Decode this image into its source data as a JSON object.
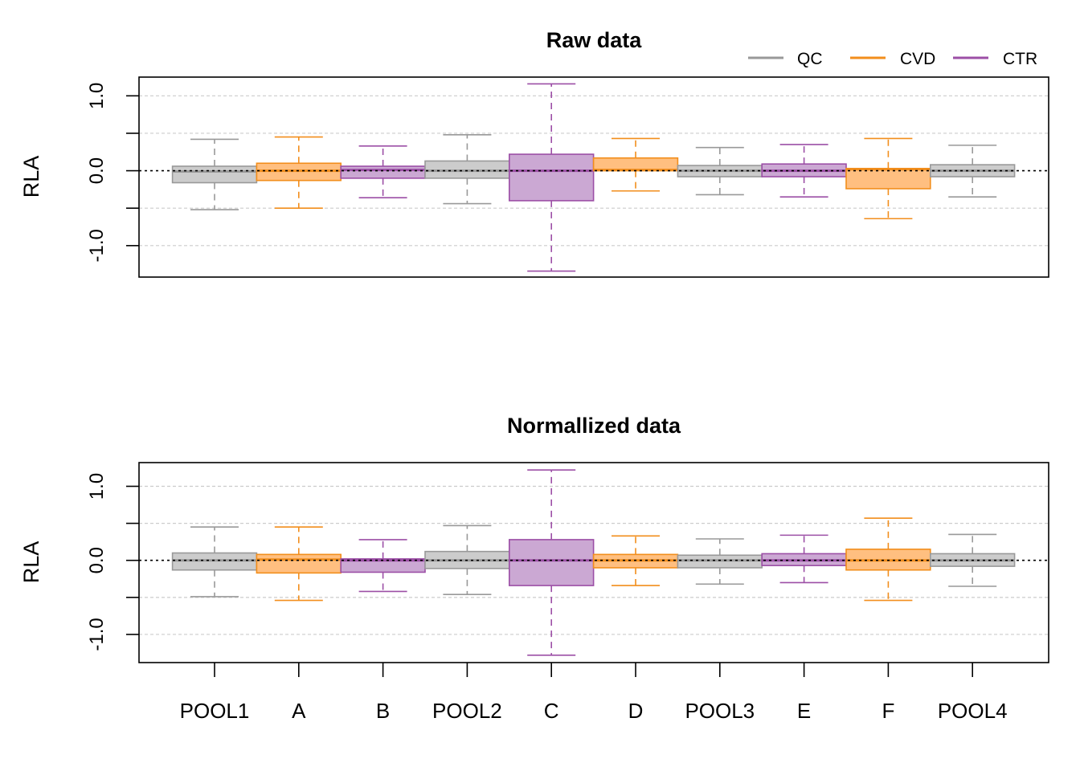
{
  "colors": {
    "QC": "#999999",
    "CVD": "#f28e1c",
    "CTR": "#9c4fa6",
    "QC_fill": "#cccccc",
    "CVD_fill": "#ffbf80",
    "CTR_fill": "#cba8d3"
  },
  "legend": [
    {
      "label": "QC",
      "group": "QC"
    },
    {
      "label": "CVD",
      "group": "CVD"
    },
    {
      "label": "CTR",
      "group": "CTR"
    }
  ],
  "chart_data": [
    {
      "type": "boxplot",
      "title": "Raw data",
      "ylabel": "RLA",
      "ylim": [
        -1.42,
        1.25
      ],
      "yticks": [
        -1.0,
        0.0,
        1.0
      ],
      "ytick_labels": [
        "-1.0",
        "0.0",
        "1.0"
      ],
      "minor_grid": [
        -1.0,
        -0.5,
        0.5,
        1.0
      ],
      "reference_line": 0,
      "grid": true,
      "legend_position": "top-right",
      "categories": [
        "POOL1",
        "A",
        "B",
        "POOL2",
        "C",
        "D",
        "POOL3",
        "E",
        "F",
        "POOL4"
      ],
      "groups": [
        "QC",
        "CVD",
        "CTR",
        "QC",
        "CTR",
        "CVD",
        "QC",
        "CTR",
        "CVD",
        "QC"
      ],
      "boxes": [
        {
          "min": -0.52,
          "q1": -0.16,
          "median": -0.01,
          "q3": 0.06,
          "max": 0.42
        },
        {
          "min": -0.5,
          "q1": -0.13,
          "median": 0.0,
          "q3": 0.1,
          "max": 0.45
        },
        {
          "min": -0.36,
          "q1": -0.1,
          "median": 0.01,
          "q3": 0.06,
          "max": 0.33
        },
        {
          "min": -0.44,
          "q1": -0.1,
          "median": 0.0,
          "q3": 0.13,
          "max": 0.48
        },
        {
          "min": -1.34,
          "q1": -0.4,
          "median": 0.0,
          "q3": 0.22,
          "max": 1.16
        },
        {
          "min": -0.27,
          "q1": 0.0,
          "median": 0.01,
          "q3": 0.17,
          "max": 0.43
        },
        {
          "min": -0.32,
          "q1": -0.08,
          "median": 0.0,
          "q3": 0.07,
          "max": 0.31
        },
        {
          "min": -0.35,
          "q1": -0.08,
          "median": 0.0,
          "q3": 0.09,
          "max": 0.35
        },
        {
          "min": -0.64,
          "q1": -0.24,
          "median": 0.02,
          "q3": 0.03,
          "max": 0.43
        },
        {
          "min": -0.35,
          "q1": -0.08,
          "median": 0.0,
          "q3": 0.08,
          "max": 0.34
        }
      ]
    },
    {
      "type": "boxplot",
      "title": "Normallized data",
      "ylabel": "RLA",
      "ylim": [
        -1.38,
        1.32
      ],
      "yticks": [
        -1.0,
        0.0,
        1.0
      ],
      "ytick_labels": [
        "-1.0",
        "0.0",
        "1.0"
      ],
      "minor_grid": [
        -1.0,
        -0.5,
        0.5,
        1.0
      ],
      "reference_line": 0,
      "grid": true,
      "categories": [
        "POOL1",
        "A",
        "B",
        "POOL2",
        "C",
        "D",
        "POOL3",
        "E",
        "F",
        "POOL4"
      ],
      "category_labels": [
        "POOL1",
        "A",
        "B",
        "POOL2",
        "C",
        "D",
        "POOL3",
        "E",
        "F",
        "POOL4"
      ],
      "groups": [
        "QC",
        "CVD",
        "CTR",
        "QC",
        "CTR",
        "CVD",
        "QC",
        "CTR",
        "CVD",
        "QC"
      ],
      "boxes": [
        {
          "min": -0.49,
          "q1": -0.13,
          "median": 0.0,
          "q3": 0.1,
          "max": 0.45
        },
        {
          "min": -0.54,
          "q1": -0.17,
          "median": 0.01,
          "q3": 0.08,
          "max": 0.45
        },
        {
          "min": -0.42,
          "q1": -0.16,
          "median": 0.0,
          "q3": 0.02,
          "max": 0.28
        },
        {
          "min": -0.46,
          "q1": -0.11,
          "median": 0.0,
          "q3": 0.12,
          "max": 0.47
        },
        {
          "min": -1.28,
          "q1": -0.34,
          "median": 0.0,
          "q3": 0.28,
          "max": 1.22
        },
        {
          "min": -0.34,
          "q1": -0.1,
          "median": 0.0,
          "q3": 0.08,
          "max": 0.33
        },
        {
          "min": -0.32,
          "q1": -0.1,
          "median": 0.0,
          "q3": 0.07,
          "max": 0.29
        },
        {
          "min": -0.3,
          "q1": -0.07,
          "median": 0.0,
          "q3": 0.09,
          "max": 0.34
        },
        {
          "min": -0.54,
          "q1": -0.13,
          "median": 0.0,
          "q3": 0.15,
          "max": 0.57
        },
        {
          "min": -0.35,
          "q1": -0.08,
          "median": 0.0,
          "q3": 0.09,
          "max": 0.35
        }
      ]
    }
  ]
}
